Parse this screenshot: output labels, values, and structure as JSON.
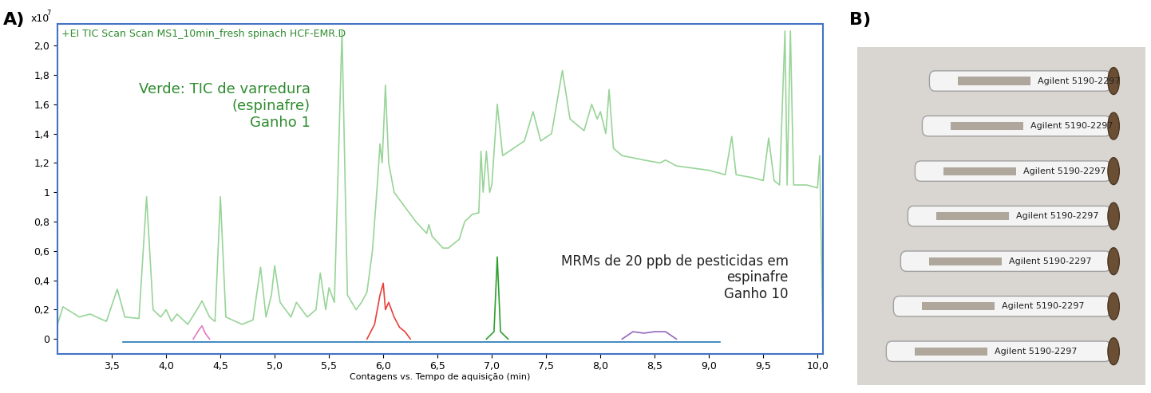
{
  "chart_data": {
    "type": "line",
    "panel_label": "A)",
    "title": "+EI TIC Scan Scan MS1_10min_fresh spinach HCF-EMR.D",
    "x_label": "Contagens vs. Tempo de aquisição (min)",
    "y_multiplier": {
      "base": "x10",
      "exponent": "7"
    },
    "xlim": [
      3.0,
      10.05
    ],
    "ylim": [
      -0.1,
      2.15
    ],
    "xticks": [
      {
        "value": 3.5,
        "label": "3,5"
      },
      {
        "value": 4.0,
        "label": "4,0"
      },
      {
        "value": 4.5,
        "label": "4,5"
      },
      {
        "value": 5.0,
        "label": "5,0"
      },
      {
        "value": 5.5,
        "label": "5,5"
      },
      {
        "value": 6.0,
        "label": "6,0"
      },
      {
        "value": 6.5,
        "label": "6,5"
      },
      {
        "value": 7.0,
        "label": "7,0"
      },
      {
        "value": 7.5,
        "label": "7,5"
      },
      {
        "value": 8.0,
        "label": "8,0"
      },
      {
        "value": 8.5,
        "label": "8,5"
      },
      {
        "value": 9.0,
        "label": "9,0"
      },
      {
        "value": 9.5,
        "label": "9,5"
      },
      {
        "value": 10.0,
        "label": "10,0"
      }
    ],
    "yticks": [
      0,
      {
        "value": 0.2,
        "label": "0,2"
      },
      {
        "value": 0.4,
        "label": "0,4"
      },
      {
        "value": 0.6,
        "label": "0,6"
      },
      {
        "value": 0.8,
        "label": "0,8"
      },
      1,
      {
        "value": 1.2,
        "label": "1,2"
      },
      {
        "value": 1.4,
        "label": "1,4"
      },
      {
        "value": 1.6,
        "label": "1,6"
      },
      {
        "value": 1.8,
        "label": "1,8"
      },
      {
        "value": 2.0,
        "label": "2,0"
      }
    ],
    "grid": false,
    "annotations": [
      {
        "text": "Verde: TIC de varredura\n(espinafre)\nGanho 1",
        "color": "#2e8b2e"
      },
      {
        "text": "MRMs de 20 ppb de pesticidas em\nespinafre\nGanho 10",
        "color": "#222222"
      }
    ],
    "series": [
      {
        "color": "#98d498",
        "x": [
          3.0,
          3.05,
          3.2,
          3.3,
          3.45,
          3.55,
          3.62,
          3.75,
          3.82,
          3.88,
          3.95,
          4.0,
          4.05,
          4.1,
          4.2,
          4.3,
          4.33,
          4.4,
          4.45,
          4.5,
          4.55,
          4.7,
          4.8,
          4.87,
          4.92,
          4.97,
          5.0,
          5.05,
          5.15,
          5.2,
          5.3,
          5.38,
          5.42,
          5.47,
          5.5,
          5.55,
          5.62,
          5.67,
          5.75,
          5.8,
          5.85,
          5.9,
          5.95,
          5.97,
          5.99,
          6.02,
          6.05,
          6.1,
          6.2,
          6.3,
          6.4,
          6.42,
          6.45,
          6.55,
          6.6,
          6.7,
          6.75,
          6.82,
          6.88,
          6.9,
          6.92,
          6.95,
          6.98,
          7.0,
          7.05,
          7.1,
          7.2,
          7.3,
          7.38,
          7.45,
          7.55,
          7.65,
          7.72,
          7.8,
          7.85,
          7.92,
          7.97,
          8.0,
          8.05,
          8.08,
          8.12,
          8.2,
          8.4,
          8.55,
          8.6,
          8.7,
          9.0,
          9.15,
          9.21,
          9.25,
          9.4,
          9.5,
          9.55,
          9.6,
          9.65,
          9.7,
          9.72,
          9.75,
          9.78,
          9.9,
          10.0,
          10.02,
          10.05
        ],
        "values": [
          0.1,
          0.22,
          0.15,
          0.17,
          0.12,
          0.34,
          0.15,
          0.14,
          0.97,
          0.2,
          0.15,
          0.2,
          0.12,
          0.17,
          0.1,
          0.22,
          0.26,
          0.15,
          0.12,
          0.97,
          0.15,
          0.1,
          0.13,
          0.49,
          0.15,
          0.3,
          0.5,
          0.25,
          0.15,
          0.25,
          0.15,
          0.2,
          0.45,
          0.2,
          0.35,
          0.25,
          2.1,
          0.3,
          0.2,
          0.25,
          0.32,
          0.6,
          1.1,
          1.33,
          1.2,
          1.73,
          1.2,
          1.0,
          0.9,
          0.8,
          0.72,
          0.78,
          0.7,
          0.62,
          0.62,
          0.68,
          0.8,
          0.85,
          0.86,
          1.28,
          1.0,
          1.28,
          1.0,
          1.05,
          1.6,
          1.25,
          1.3,
          1.35,
          1.55,
          1.35,
          1.4,
          1.83,
          1.5,
          1.45,
          1.42,
          1.6,
          1.5,
          1.55,
          1.4,
          1.7,
          1.3,
          1.25,
          1.22,
          1.2,
          1.22,
          1.18,
          1.15,
          1.12,
          1.38,
          1.12,
          1.1,
          1.08,
          1.37,
          1.08,
          1.05,
          2.1,
          1.05,
          2.1,
          1.05,
          1.05,
          1.03,
          1.25,
          0.0
        ]
      },
      {
        "color": "#1f77b4",
        "x": [
          3.6,
          5.0,
          6.5,
          8.0,
          9.1
        ],
        "values": [
          -0.02,
          -0.02,
          -0.02,
          -0.02,
          -0.02
        ]
      },
      {
        "color": "#e377c2",
        "x": [
          4.25,
          4.3,
          4.33,
          4.36,
          4.4
        ],
        "values": [
          0.0,
          0.06,
          0.09,
          0.04,
          0.0
        ]
      },
      {
        "color": "#e8403a",
        "x": [
          5.85,
          5.92,
          5.97,
          6.0,
          6.02,
          6.05,
          6.1,
          6.15,
          6.2,
          6.25
        ],
        "values": [
          0.0,
          0.1,
          0.3,
          0.38,
          0.2,
          0.25,
          0.15,
          0.08,
          0.05,
          0.0
        ]
      },
      {
        "color": "#2ca02c",
        "x": [
          6.95,
          7.02,
          7.05,
          7.08,
          7.15
        ],
        "values": [
          0.0,
          0.05,
          0.56,
          0.05,
          0.0
        ]
      },
      {
        "color": "#9467bd",
        "x": [
          8.2,
          8.3,
          8.4,
          8.5,
          8.6,
          8.7
        ],
        "values": [
          0.0,
          0.05,
          0.04,
          0.05,
          0.05,
          0.0
        ]
      }
    ]
  },
  "photo": {
    "panel_label": "B)",
    "tube_labels": [
      "Agilent 5190-2297",
      "Agilent 5190-2297",
      "Agilent 5190-2297",
      "Agilent 5190-2297",
      "Agilent 5190-2297",
      "Agilent 5190-2297",
      "Agilent 5190-2297"
    ]
  }
}
